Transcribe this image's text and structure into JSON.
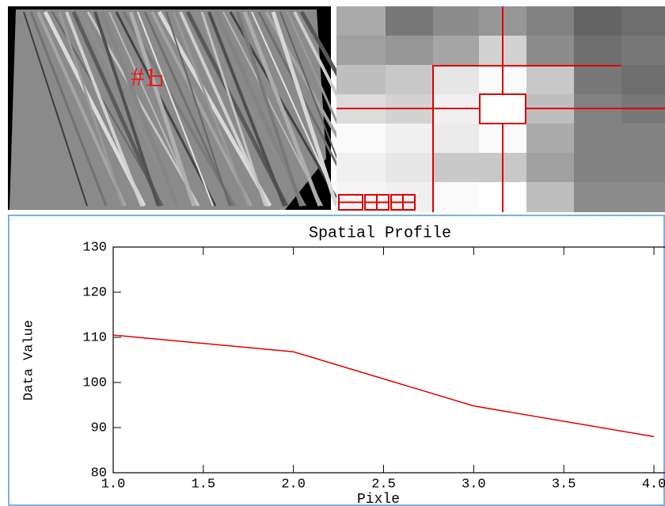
{
  "image_panel": {
    "roi_label": "#1"
  },
  "chart_data": {
    "type": "line",
    "title": "Spatial Profile",
    "x_label": "Pixle",
    "y_label": "Data Value",
    "x": [
      1,
      2,
      3,
      4
    ],
    "values": [
      110.5,
      106.8,
      94.8,
      88
    ],
    "color": "#e00000",
    "xlim": [
      1,
      4
    ],
    "ylim": [
      80,
      130
    ],
    "xticks": [
      {
        "value": 1,
        "label": "1.0"
      },
      {
        "value": 1.5,
        "label": "1.5"
      },
      {
        "value": 2,
        "label": "2.0"
      },
      {
        "value": 2.5,
        "label": "2.5"
      },
      {
        "value": 3,
        "label": "3.0"
      },
      {
        "value": 3.5,
        "label": "3.5"
      },
      {
        "value": 4,
        "label": "4.0"
      }
    ],
    "yticks": [
      80,
      90,
      100,
      110,
      120,
      130
    ]
  }
}
